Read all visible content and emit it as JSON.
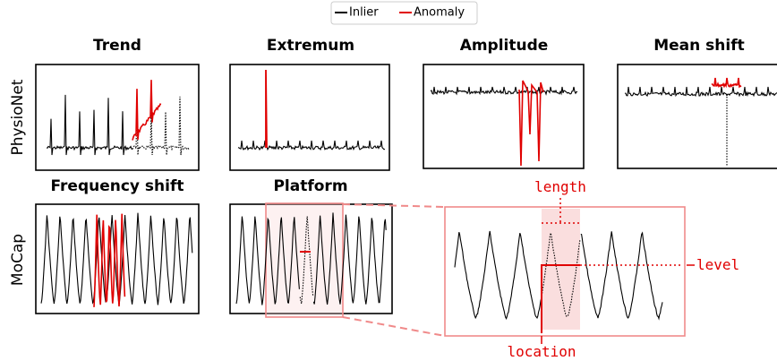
{
  "legend": {
    "items": [
      {
        "name": "Inlier",
        "color": "#000000"
      },
      {
        "name": "Anomaly",
        "color": "#e00000"
      }
    ]
  },
  "panels": [
    {
      "title": "Trend"
    },
    {
      "title": "Extremum"
    },
    {
      "title": "Amplitude"
    },
    {
      "title": "Mean shift"
    },
    {
      "title": "Frequency shift"
    },
    {
      "title": "Platform"
    }
  ],
  "rows": [
    "PhysioNet",
    "MoCap"
  ],
  "annotations": {
    "length": "length",
    "level": "level",
    "location": "location"
  }
}
